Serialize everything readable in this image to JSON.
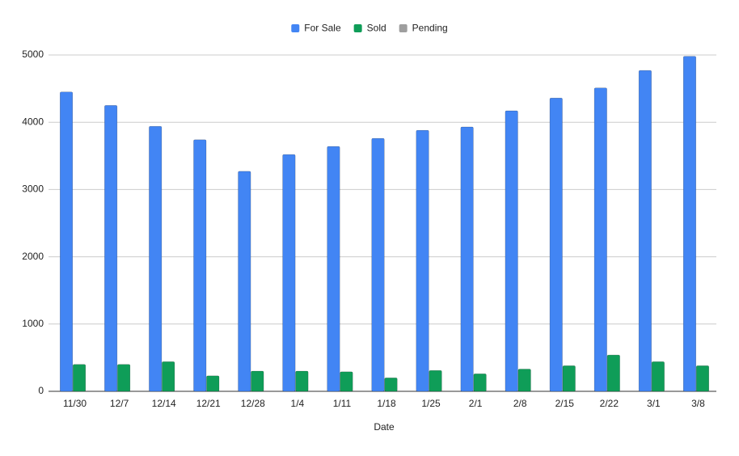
{
  "chart_data": {
    "type": "bar",
    "x_label": "Date",
    "categories": [
      "11/30",
      "12/7",
      "12/14",
      "12/21",
      "12/28",
      "1/4",
      "1/11",
      "1/18",
      "1/25",
      "2/1",
      "2/8",
      "2/15",
      "2/22",
      "3/1",
      "3/8"
    ],
    "series": [
      {
        "name": "For Sale",
        "color": "#4285f4",
        "values": [
          4450,
          4250,
          3940,
          3740,
          3270,
          3520,
          3640,
          3760,
          3880,
          3930,
          4170,
          4360,
          4510,
          4770,
          4980
        ]
      },
      {
        "name": "Sold",
        "color": "#0f9d58",
        "values": [
          400,
          400,
          440,
          230,
          300,
          300,
          290,
          200,
          310,
          260,
          330,
          380,
          540,
          440,
          380
        ]
      },
      {
        "name": "Pending",
        "color": "#9e9e9e",
        "values": [
          null,
          null,
          null,
          null,
          null,
          null,
          null,
          null,
          null,
          null,
          null,
          null,
          null,
          null,
          null
        ]
      }
    ],
    "ylim": [
      0,
      5000
    ],
    "yticks": [
      0,
      1000,
      2000,
      3000,
      4000,
      5000
    ],
    "grid": true,
    "legend": "top"
  }
}
